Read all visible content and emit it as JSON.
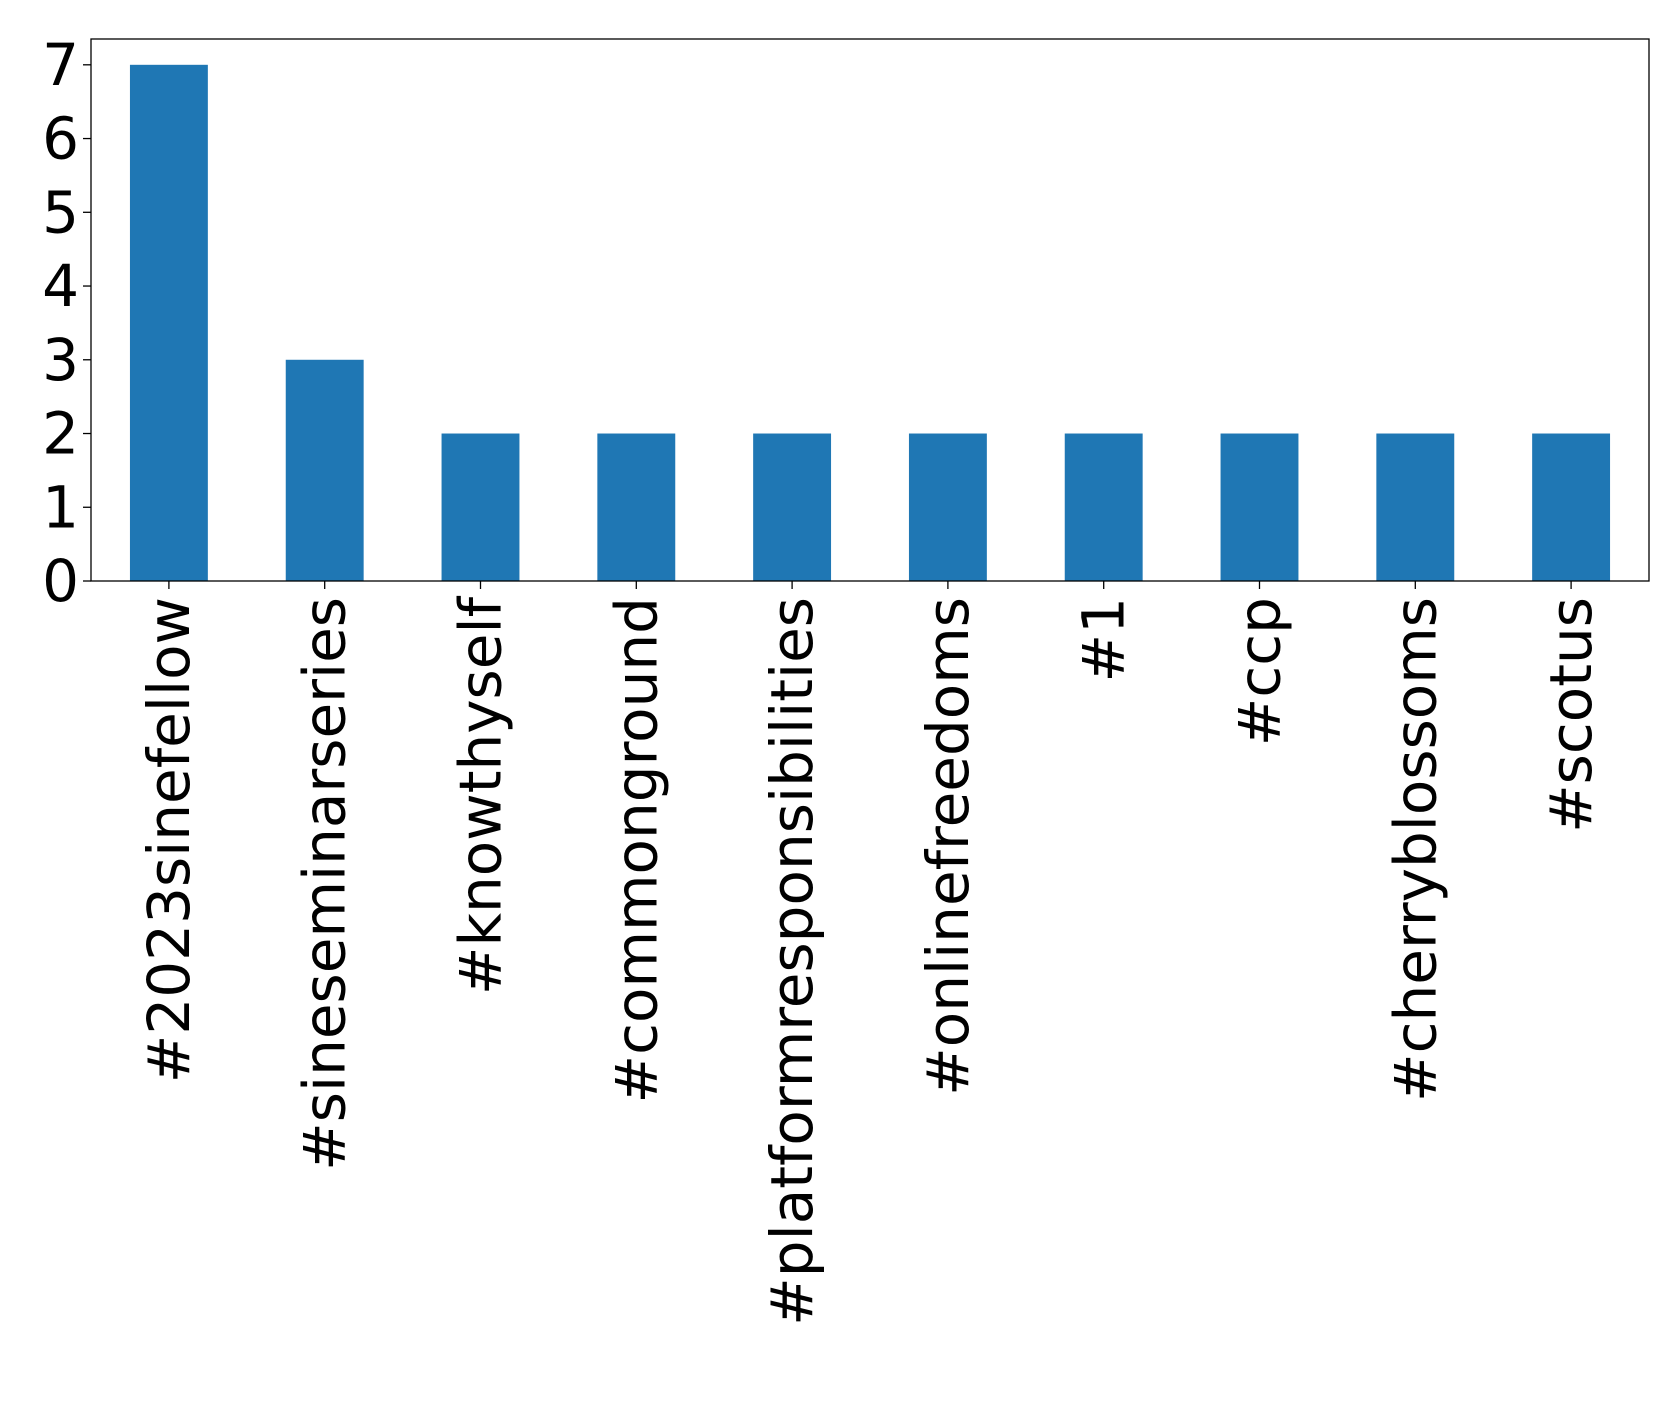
{
  "chart_data": {
    "type": "bar",
    "title": "",
    "xlabel": "",
    "ylabel": "",
    "categories": [
      "#2023sinefellow",
      "#sineseminarseries",
      "#knowthyself",
      "#commonground",
      "#platformresponsibilities",
      "#onlinefreedoms",
      "#1",
      "#ccp",
      "#cherryblossoms",
      "#scotus"
    ],
    "values": [
      7,
      3,
      2,
      2,
      2,
      2,
      2,
      2,
      2,
      2
    ],
    "ylim": [
      0,
      7.35
    ],
    "yticks": [
      "0",
      "1",
      "2",
      "3",
      "4",
      "5",
      "6",
      "7"
    ],
    "grid": false,
    "legend": "none",
    "bar_color": "#1f77b4"
  }
}
